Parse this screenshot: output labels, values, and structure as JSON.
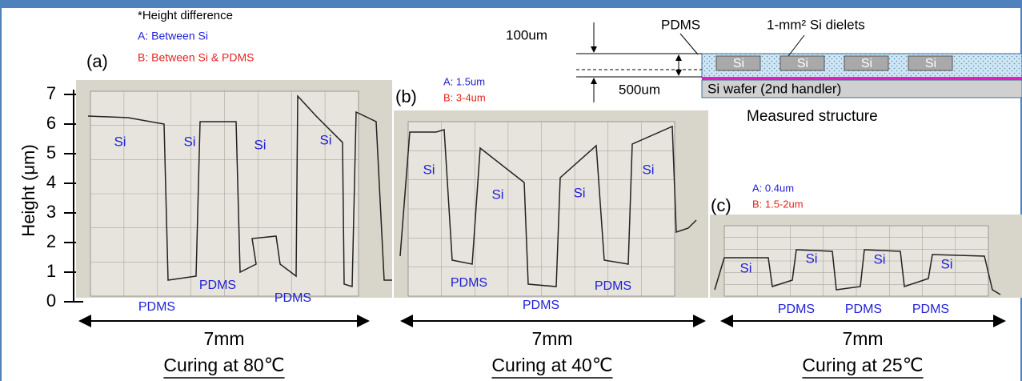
{
  "note": {
    "title": "*Height difference",
    "a": "A: Between Si",
    "b": "B: Between Si & PDMS"
  },
  "axis": {
    "label": "Height (μm)",
    "ticks": [
      0,
      1,
      2,
      3,
      4,
      5,
      6,
      7
    ]
  },
  "panels": [
    {
      "tag": "(a)",
      "si": [
        "Si",
        "Si",
        "Si",
        "Si"
      ],
      "pdms": [
        "PDMS",
        "PDMS",
        "PDMS"
      ],
      "scale": "7mm",
      "caption": "Curing at 80℃"
    },
    {
      "tag": "(b)",
      "a": "A: 1.5um",
      "b": "B: 3-4um",
      "si": [
        "Si",
        "Si",
        "Si",
        "Si"
      ],
      "pdms": [
        "PDMS",
        "PDMS",
        "PDMS"
      ],
      "scale": "7mm",
      "caption": "Curing at 40℃"
    },
    {
      "tag": "(c)",
      "a": "A: 0.4um",
      "b": "B: 1.5-2um",
      "si": [
        "Si",
        "Si",
        "Si",
        "Si"
      ],
      "pdms": [
        "PDMS",
        "PDMS",
        "PDMS"
      ],
      "scale": "7mm",
      "caption": "Curing at 25℃"
    }
  ],
  "structure": {
    "pdms": "PDMS",
    "dielets": "1-mm² Si dielets",
    "top": "100um",
    "bottom": "500um",
    "wafer": "Si wafer (2nd handler)",
    "si": [
      "Si",
      "Si",
      "Si",
      "Si"
    ],
    "caption": "Measured structure"
  }
}
